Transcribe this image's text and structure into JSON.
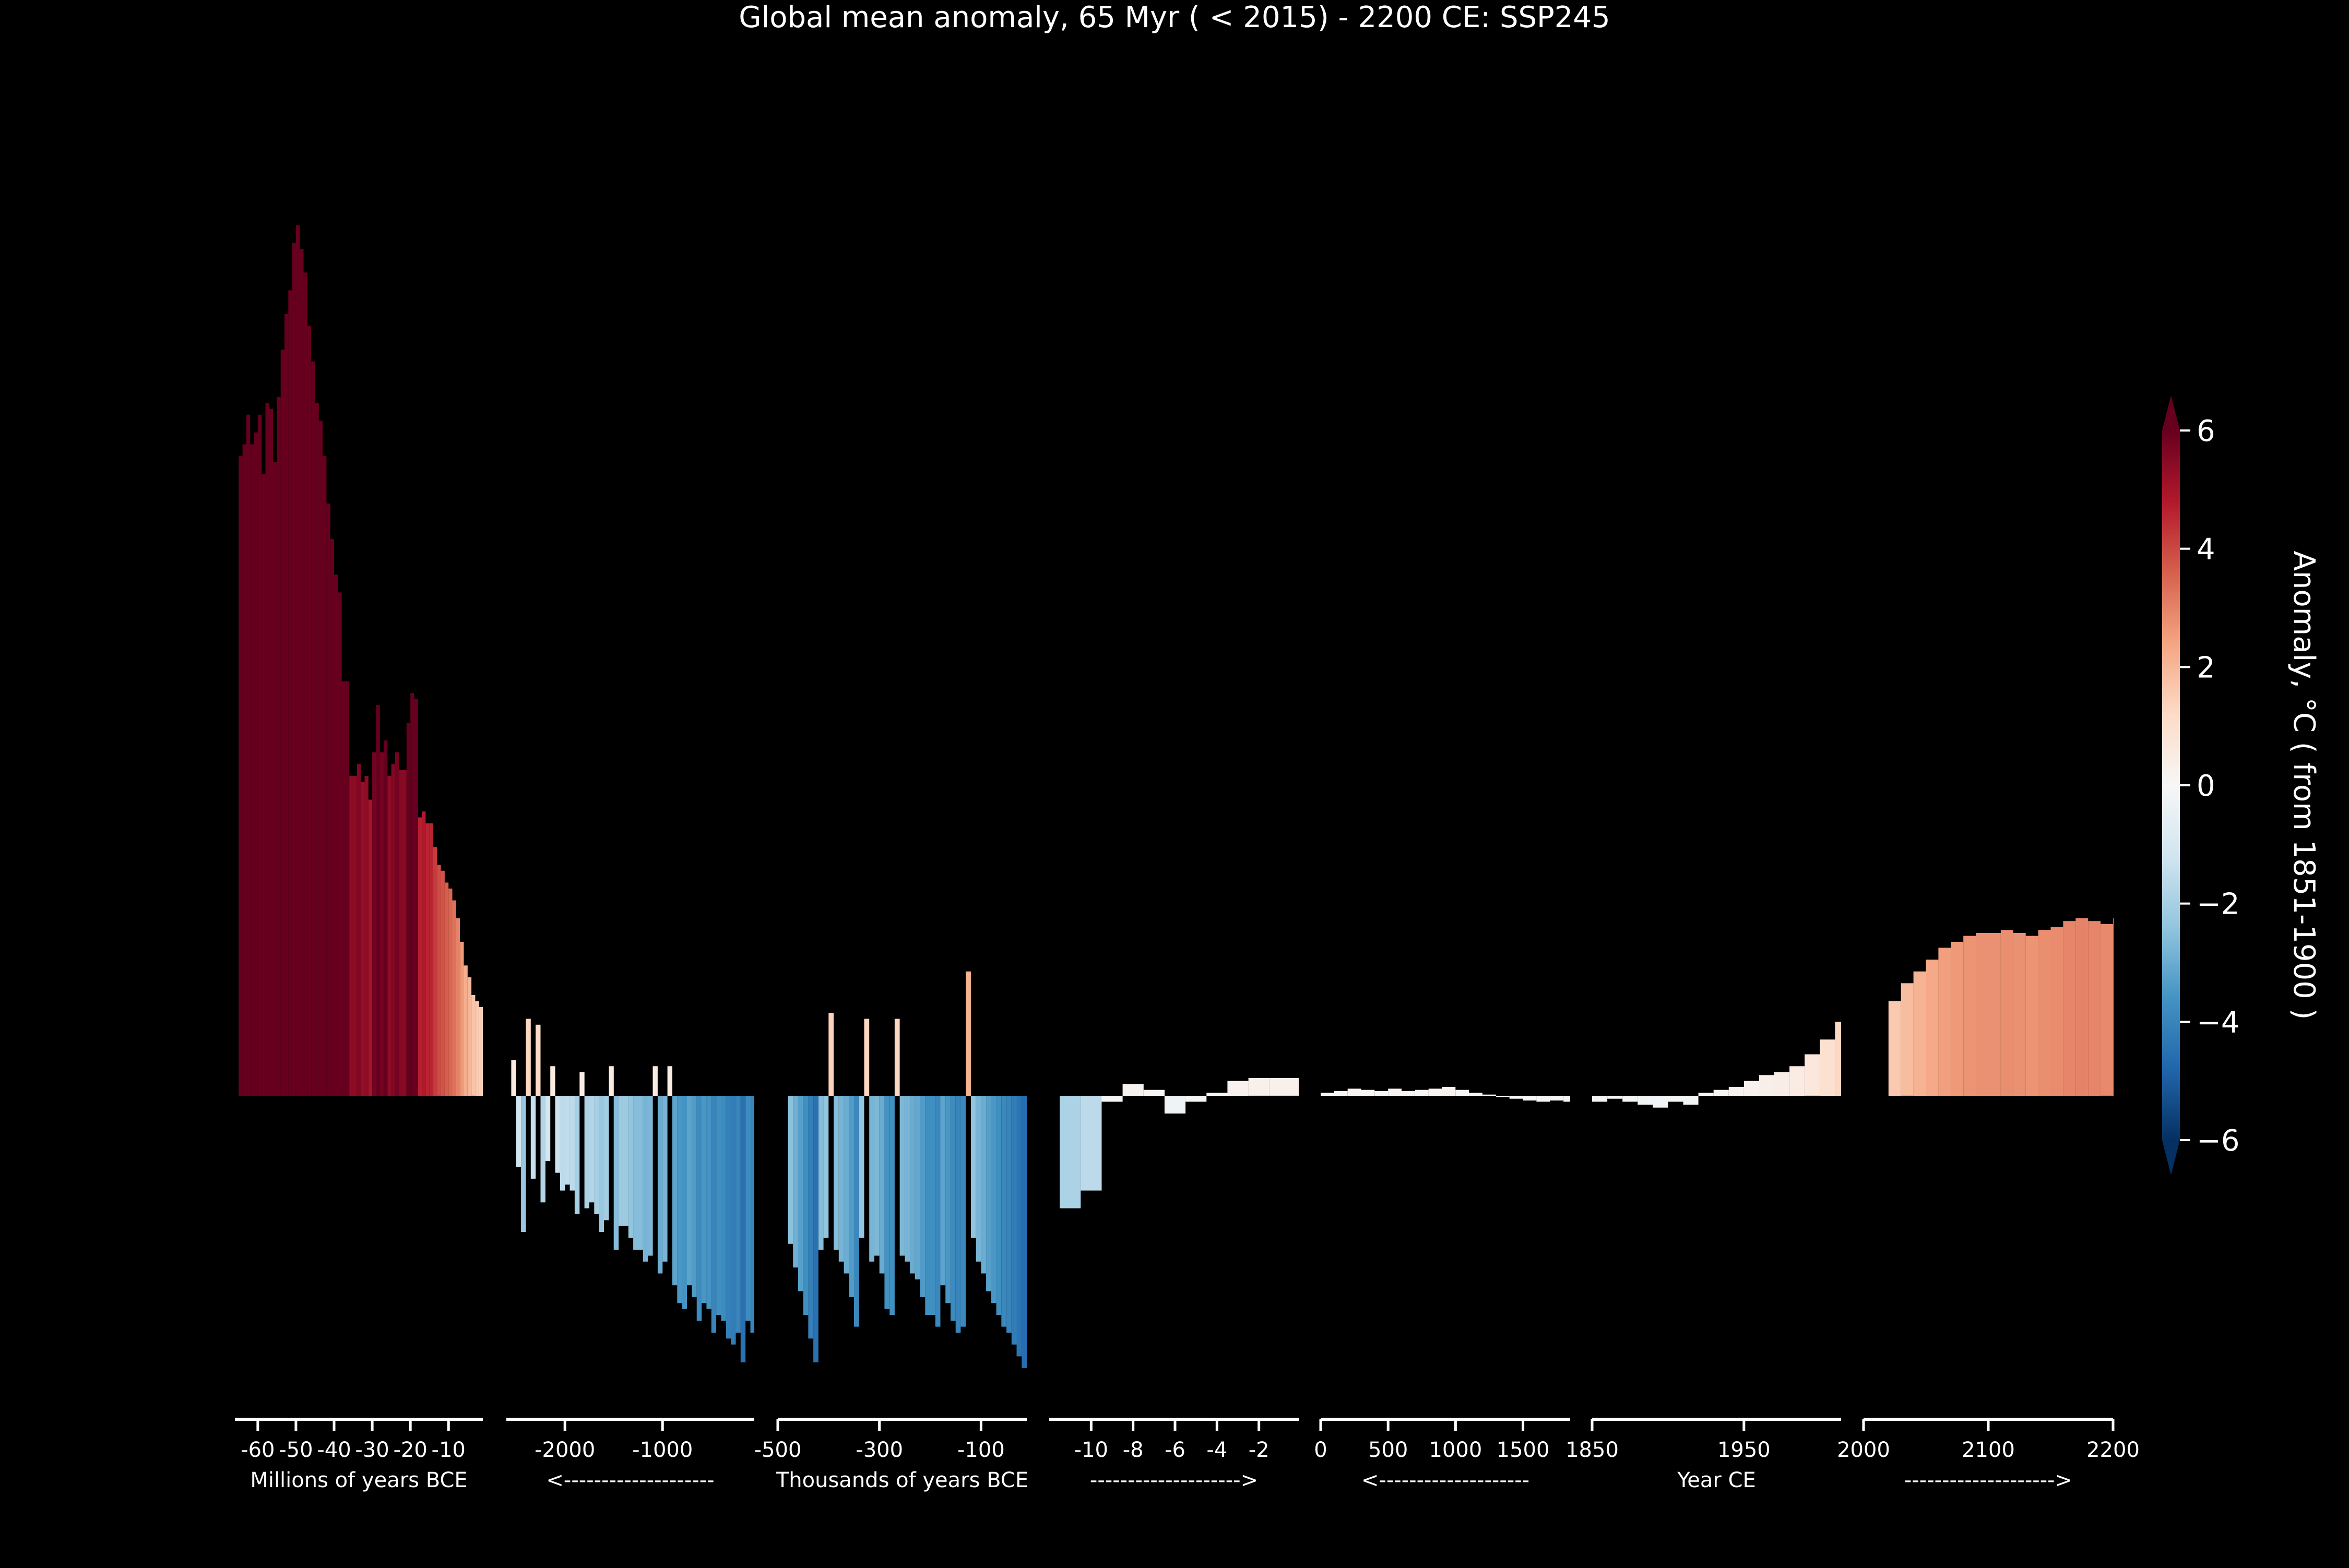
{
  "page": {
    "title": "Global mean anomaly, 65 Myr ( < 2015) - 2200 CE: SSP245"
  },
  "colorbar": {
    "label": "Anomaly, °C ( from 1851-1900 )",
    "range": [
      -6,
      6
    ],
    "ticks": [
      6,
      4,
      2,
      0,
      -2,
      -4,
      -6
    ],
    "tick_labels": [
      "6",
      "4",
      "2",
      "0",
      "−2",
      "−4",
      "−6"
    ],
    "extend": "both",
    "colormap": "RdBu_r",
    "colors": [
      "#053061",
      "#2166ac",
      "#4393c3",
      "#92c5de",
      "#d1e5f0",
      "#f7f7f7",
      "#fddbc7",
      "#f4a582",
      "#d6604d",
      "#b2182b",
      "#67001f"
    ]
  },
  "chart_data": {
    "type": "bar",
    "y_unit": "°C anomaly from 1851-1900",
    "ylim": [
      -5.5,
      15
    ],
    "grid": false,
    "background": "#000000",
    "panels": [
      {
        "id": "millions-bce",
        "xlim": [
          -66,
          -1
        ],
        "ticks": [
          -60,
          -50,
          -40,
          -30,
          -20,
          -10
        ],
        "tick_labels": [
          "-60",
          "-50",
          "-40",
          "-30",
          "-20",
          "-10"
        ],
        "sublabel": "Millions of years BCE",
        "x": [
          -65,
          -64,
          -63,
          -62,
          -61,
          -60,
          -59,
          -58,
          -57,
          -56,
          -55,
          -54,
          -53,
          -52,
          -51,
          -50,
          -49,
          -48,
          -47,
          -46,
          -45,
          -44,
          -43,
          -42,
          -41,
          -40,
          -39,
          -38,
          -37,
          -36,
          -35,
          -34,
          -33,
          -32,
          -31,
          -30,
          -29,
          -28,
          -27,
          -26,
          -25,
          -24,
          -23,
          -22,
          -21,
          -20,
          -19,
          -18,
          -17,
          -16,
          -15,
          -14,
          -13,
          -12,
          -11,
          -10,
          -9,
          -8,
          -7,
          -6,
          -5,
          -4,
          -3,
          -2
        ],
        "values": [
          10.8,
          11.0,
          11.5,
          11.0,
          11.2,
          11.5,
          10.5,
          11.7,
          11.6,
          10.7,
          11.8,
          12.6,
          13.2,
          13.6,
          14.4,
          14.7,
          14.3,
          13.9,
          13.0,
          12.4,
          11.7,
          11.4,
          10.8,
          10.0,
          9.4,
          8.8,
          8.5,
          7.0,
          7.0,
          5.4,
          5.4,
          5.6,
          5.3,
          5.4,
          5.0,
          5.8,
          6.6,
          5.8,
          6.0,
          5.4,
          5.6,
          5.8,
          5.5,
          5.5,
          6.3,
          6.8,
          6.7,
          4.7,
          4.8,
          4.6,
          4.6,
          4.2,
          3.9,
          3.8,
          3.6,
          3.5,
          3.3,
          3.0,
          2.6,
          2.2,
          2.0,
          1.7,
          1.6,
          1.5
        ]
      },
      {
        "id": "thousands-bce-a",
        "xlim": [
          -2600,
          -60
        ],
        "ticks": [
          -2000,
          -1000
        ],
        "tick_labels": [
          "-2000",
          "-1000"
        ],
        "sublabel": "<--------------------",
        "x": [
          -2550,
          -2500,
          -2450,
          -2400,
          -2350,
          -2300,
          -2250,
          -2200,
          -2150,
          -2100,
          -2050,
          -2000,
          -1950,
          -1900,
          -1850,
          -1800,
          -1750,
          -1700,
          -1650,
          -1600,
          -1550,
          -1500,
          -1450,
          -1400,
          -1350,
          -1300,
          -1250,
          -1200,
          -1150,
          -1100,
          -1050,
          -1000,
          -950,
          -900,
          -850,
          -800,
          -750,
          -700,
          -650,
          -600,
          -550,
          -500,
          -450,
          -400,
          -350,
          -300,
          -250,
          -200,
          -150,
          -100
        ],
        "values": [
          0.6,
          -1.2,
          -2.3,
          1.3,
          -1.4,
          1.2,
          -1.8,
          -1.1,
          0.5,
          -1.3,
          -1.6,
          -1.5,
          -1.6,
          -2.0,
          0.4,
          -1.9,
          -1.8,
          -2.0,
          -2.3,
          -2.1,
          0.5,
          -2.6,
          -2.2,
          -2.2,
          -2.4,
          -2.6,
          -2.6,
          -2.8,
          -2.7,
          0.5,
          -3.0,
          -2.8,
          0.5,
          -3.2,
          -3.5,
          -3.6,
          -3.2,
          -3.4,
          -3.8,
          -3.5,
          -3.6,
          -4.0,
          -3.7,
          -3.8,
          -4.1,
          -4.2,
          -4.0,
          -4.5,
          -3.8,
          -4.0
        ]
      },
      {
        "id": "thousands-bce-b",
        "xlim": [
          -500,
          -10
        ],
        "ticks": [
          -500,
          -300,
          -100
        ],
        "tick_labels": [
          "-500",
          "-300",
          "-100"
        ],
        "sublabel": "Thousands of years BCE",
        "x": [
          -480,
          -470,
          -460,
          -450,
          -440,
          -430,
          -420,
          -410,
          -400,
          -390,
          -380,
          -370,
          -360,
          -350,
          -340,
          -330,
          -320,
          -310,
          -300,
          -290,
          -280,
          -270,
          -260,
          -250,
          -240,
          -230,
          -220,
          -210,
          -200,
          -190,
          -180,
          -170,
          -160,
          -150,
          -140,
          -130,
          -120,
          -110,
          -100,
          -90,
          -80,
          -70,
          -60,
          -50,
          -40,
          -30,
          -20
        ],
        "values": [
          -2.5,
          -2.9,
          -3.3,
          -3.7,
          -4.1,
          -4.5,
          -2.6,
          -2.4,
          1.4,
          -2.6,
          -2.8,
          -3.0,
          -3.4,
          -3.9,
          -2.4,
          1.3,
          -2.8,
          -2.7,
          -3.0,
          -3.6,
          -3.7,
          1.3,
          -2.7,
          -2.8,
          -3.0,
          -3.1,
          -3.4,
          -3.7,
          -3.7,
          -3.9,
          -3.2,
          -3.5,
          -3.8,
          -4.0,
          -3.9,
          2.1,
          -2.4,
          -2.8,
          -3.0,
          -3.3,
          -3.5,
          -3.7,
          -3.9,
          -4.0,
          -4.2,
          -4.4,
          -4.6
        ]
      },
      {
        "id": "thousands-bce-c",
        "xlim": [
          -12,
          -0.1
        ],
        "ticks": [
          -10,
          -8,
          -6,
          -4,
          -2
        ],
        "tick_labels": [
          "-10",
          "-8",
          "-6",
          "-4",
          "-2"
        ],
        "sublabel": "-------------------->",
        "x": [
          -11.5,
          -10.5,
          -9.5,
          -8.5,
          -7.5,
          -6.5,
          -5.5,
          -4.5,
          -3.5,
          -2.5,
          -1.5,
          -0.5
        ],
        "values": [
          -1.9,
          -1.6,
          -0.1,
          0.2,
          0.1,
          -0.3,
          -0.1,
          0.05,
          0.25,
          0.3,
          0.3,
          0.3
        ]
      },
      {
        "id": "years-ce-a",
        "xlim": [
          0,
          1850
        ],
        "ticks": [
          0,
          500,
          1000,
          1500
        ],
        "tick_labels": [
          "0",
          "500",
          "1000",
          "1500"
        ],
        "sublabel": "<--------------------",
        "x": [
          0,
          100,
          200,
          300,
          400,
          500,
          600,
          700,
          800,
          900,
          1000,
          1100,
          1200,
          1300,
          1400,
          1500,
          1600,
          1700,
          1800
        ],
        "values": [
          0.05,
          0.08,
          0.12,
          0.1,
          0.08,
          0.12,
          0.08,
          0.1,
          0.12,
          0.15,
          0.1,
          0.05,
          0.02,
          -0.02,
          -0.05,
          -0.08,
          -0.1,
          -0.08,
          -0.1
        ]
      },
      {
        "id": "years-ce-b",
        "xlim": [
          1850,
          2014
        ],
        "ticks": [
          1850,
          1950
        ],
        "tick_labels": [
          "1850",
          "1950"
        ],
        "sublabel": "Year CE",
        "x": [
          1850,
          1860,
          1870,
          1880,
          1890,
          1900,
          1910,
          1920,
          1930,
          1940,
          1950,
          1960,
          1970,
          1980,
          1990,
          2000,
          2010
        ],
        "values": [
          -0.1,
          -0.05,
          -0.1,
          -0.15,
          -0.2,
          -0.1,
          -0.15,
          0.05,
          0.1,
          0.15,
          0.25,
          0.35,
          0.4,
          0.5,
          0.7,
          0.95,
          1.25
        ]
      },
      {
        "id": "years-ce-c",
        "xlim": [
          2000,
          2200
        ],
        "ticks": [
          2000,
          2100,
          2200
        ],
        "tick_labels": [
          "2000",
          "2100",
          "2200"
        ],
        "sublabel": "-------------------->",
        "x": [
          2020,
          2030,
          2040,
          2050,
          2060,
          2070,
          2080,
          2090,
          2100,
          2110,
          2120,
          2130,
          2140,
          2150,
          2160,
          2170,
          2180,
          2190,
          2200
        ],
        "values": [
          1.6,
          1.9,
          2.1,
          2.3,
          2.5,
          2.6,
          2.7,
          2.75,
          2.75,
          2.8,
          2.75,
          2.7,
          2.8,
          2.85,
          2.95,
          3.0,
          2.95,
          2.9,
          3.0
        ]
      }
    ]
  }
}
